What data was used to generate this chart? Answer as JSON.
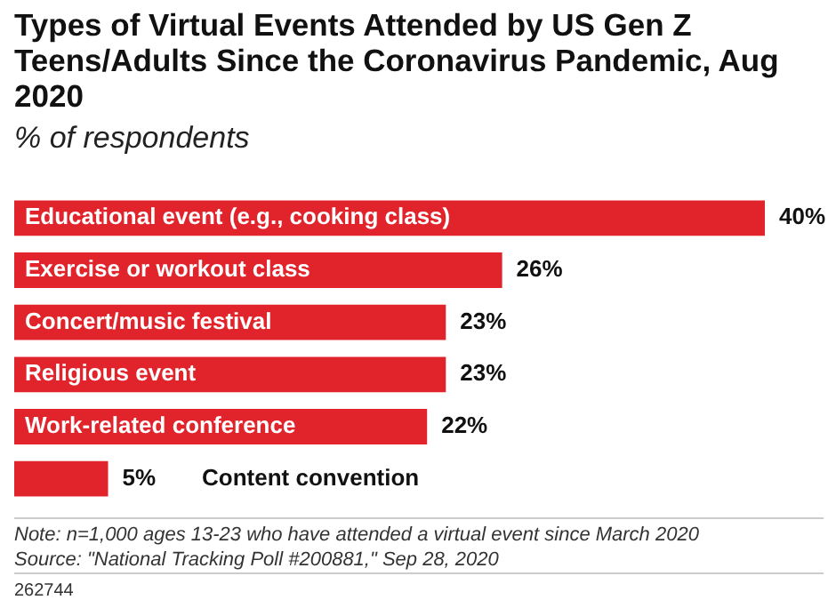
{
  "chart_data": {
    "type": "bar",
    "orientation": "horizontal",
    "title": "Types of Virtual Events Attended by US Gen Z Teens/Adults Since the Coronavirus Pandemic, Aug 2020",
    "subtitle": "% of respondents",
    "categories": [
      "Educational event (e.g., cooking class)",
      "Exercise or workout class",
      "Concert/music festival",
      "Religious event",
      "Work-related conference",
      "Content convention"
    ],
    "values": [
      40,
      26,
      23,
      23,
      22,
      5
    ],
    "value_labels": [
      "40%",
      "26%",
      "23%",
      "23%",
      "22%",
      "5%"
    ],
    "color": "#e1242b",
    "tick_labels": false,
    "annotations": [
      "Note: n=1,000 ages 13-23 who have attended a virtual event since March 2020",
      "Source: \"National Tracking Poll #200881,\" Sep 28, 2020",
      "262744"
    ]
  }
}
